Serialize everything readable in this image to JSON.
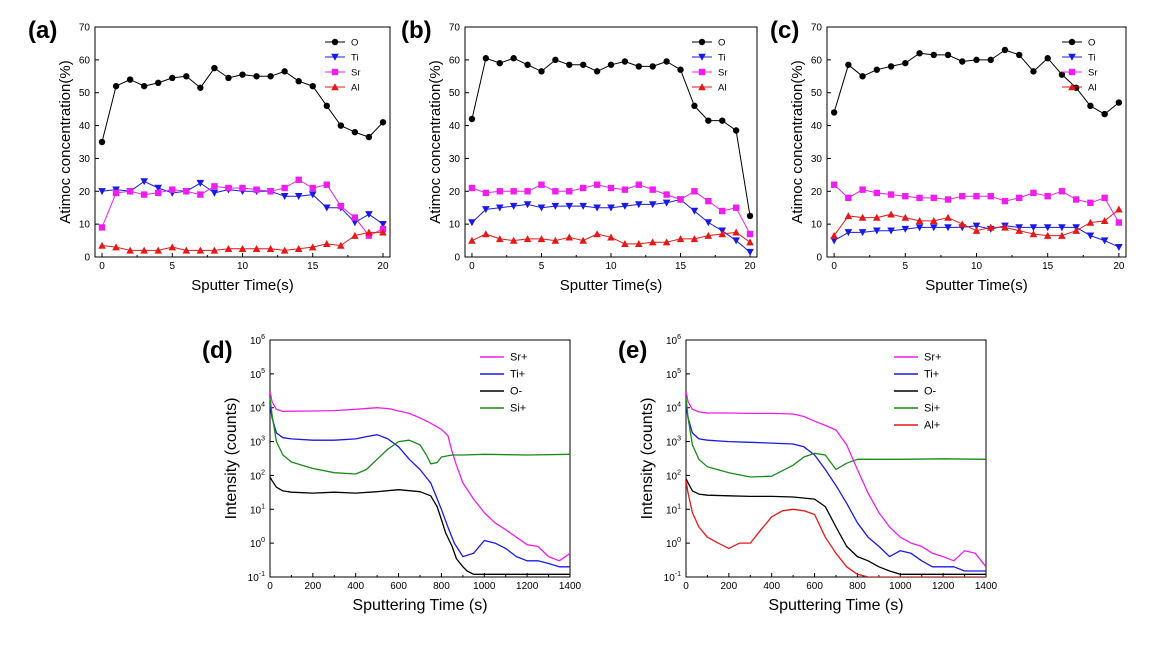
{
  "panel_labels": [
    "(a)",
    "(b)",
    "(c)",
    "(d)",
    "(e)"
  ],
  "colors": {
    "O": "#000000",
    "Ti": "#1a1ae6",
    "Sr": "#ee1fee",
    "Al": "#e61919",
    "Si": "#1a8a1a"
  },
  "chart_data": [
    {
      "type": "line",
      "panel": "(a)",
      "xlabel": "Sputter Time(s)",
      "ylabel": "Atimoc concentration(%)",
      "xlim": [
        -0.5,
        20.5
      ],
      "ylim": [
        0,
        70
      ],
      "xticks": [
        0,
        5,
        10,
        15,
        20
      ],
      "yticks": [
        0,
        10,
        20,
        30,
        40,
        50,
        60,
        70
      ],
      "legend_position": "top-right",
      "x": [
        0,
        1,
        2,
        3,
        4,
        5,
        6,
        7,
        8,
        9,
        10,
        11,
        12,
        13,
        14,
        15,
        16,
        17,
        18,
        19,
        20
      ],
      "series": [
        {
          "name": "O",
          "marker": "circle",
          "color": "#000000",
          "values": [
            35,
            52,
            54,
            52,
            53,
            54.5,
            55,
            51.5,
            57.5,
            54.5,
            55.5,
            55,
            55,
            56.5,
            53.5,
            52,
            46,
            40,
            38,
            36.5,
            41
          ]
        },
        {
          "name": "Ti",
          "marker": "triangle-down",
          "color": "#1a1ae6",
          "values": [
            20,
            20.5,
            20,
            23,
            21,
            19.5,
            20,
            22.5,
            19.5,
            20.5,
            20,
            20,
            20,
            18.5,
            18.5,
            19,
            15,
            15,
            10.5,
            13,
            10
          ]
        },
        {
          "name": "Sr",
          "marker": "square",
          "color": "#ee1fee",
          "values": [
            9,
            19.5,
            20,
            19,
            19.5,
            20.5,
            20,
            19,
            21.5,
            21,
            21,
            20.5,
            20,
            21,
            23.5,
            21,
            22,
            15.5,
            12,
            6.5,
            8.5
          ]
        },
        {
          "name": "Al",
          "marker": "triangle-up",
          "color": "#e61919",
          "values": [
            3.5,
            3,
            2,
            2,
            2,
            3,
            2,
            2,
            2,
            2.5,
            2.5,
            2.5,
            2.5,
            2,
            2.5,
            3,
            4,
            3.5,
            6.5,
            7.5,
            7.5
          ]
        }
      ]
    },
    {
      "type": "line",
      "panel": "(b)",
      "xlabel": "Sputter Time(s)",
      "ylabel": "Atimoc concentration(%)",
      "xlim": [
        -0.5,
        20.5
      ],
      "ylim": [
        0,
        70
      ],
      "xticks": [
        0,
        5,
        10,
        15,
        20
      ],
      "yticks": [
        0,
        10,
        20,
        30,
        40,
        50,
        60,
        70
      ],
      "legend_position": "top-right",
      "x": [
        0,
        1,
        2,
        3,
        4,
        5,
        6,
        7,
        8,
        9,
        10,
        11,
        12,
        13,
        14,
        15,
        16,
        17,
        18,
        19,
        20
      ],
      "series": [
        {
          "name": "O",
          "marker": "circle",
          "color": "#000000",
          "values": [
            42,
            60.5,
            59,
            60.5,
            58.5,
            56.5,
            60,
            58.5,
            58.5,
            56.5,
            58.5,
            59.5,
            58,
            58,
            59.5,
            57,
            46,
            41.5,
            41.5,
            38.5,
            12.5
          ]
        },
        {
          "name": "Ti",
          "marker": "triangle-down",
          "color": "#1a1ae6",
          "values": [
            10.5,
            14.5,
            15,
            15.5,
            16,
            15,
            15.5,
            15.5,
            15.5,
            15,
            15,
            15.5,
            16,
            16,
            16.5,
            17.5,
            14,
            10.5,
            8,
            5,
            1.5
          ]
        },
        {
          "name": "Sr",
          "marker": "square",
          "color": "#ee1fee",
          "values": [
            21,
            19.5,
            20,
            20,
            20,
            22,
            20,
            20,
            21,
            22,
            21,
            20.5,
            22,
            20.5,
            19,
            17.5,
            20,
            17,
            14,
            15,
            7
          ]
        },
        {
          "name": "Al",
          "marker": "triangle-up",
          "color": "#e61919",
          "values": [
            5,
            7,
            5.5,
            5,
            5.5,
            5.5,
            5,
            6,
            5,
            7,
            6,
            4,
            4,
            4.5,
            4.5,
            5.5,
            5.5,
            6.5,
            7,
            7.5,
            4.5
          ]
        }
      ]
    },
    {
      "type": "line",
      "panel": "(c)",
      "xlabel": "Sputter Time(s)",
      "ylabel": "Atimoc concentration(%)",
      "xlim": [
        -0.5,
        20.5
      ],
      "ylim": [
        0,
        70
      ],
      "xticks": [
        0,
        5,
        10,
        15,
        20
      ],
      "yticks": [
        0,
        10,
        20,
        30,
        40,
        50,
        60,
        70
      ],
      "legend_position": "top-right",
      "x": [
        0,
        1,
        2,
        3,
        4,
        5,
        6,
        7,
        8,
        9,
        10,
        11,
        12,
        13,
        14,
        15,
        16,
        17,
        18,
        19,
        20
      ],
      "series": [
        {
          "name": "O",
          "marker": "circle",
          "color": "#000000",
          "values": [
            44,
            58.5,
            55,
            57,
            58,
            59,
            62,
            61.5,
            61.5,
            59.5,
            60,
            60,
            63,
            61.5,
            56.5,
            60.5,
            55.5,
            51.5,
            46,
            43.5,
            47
          ]
        },
        {
          "name": "Ti",
          "marker": "triangle-down",
          "color": "#1a1ae6",
          "values": [
            5,
            7.5,
            7.5,
            8,
            8,
            8.5,
            9,
            9,
            9,
            9,
            9.5,
            8.5,
            9.5,
            9,
            9,
            9,
            9,
            9,
            6.5,
            5,
            3
          ]
        },
        {
          "name": "Sr",
          "marker": "square",
          "color": "#ee1fee",
          "values": [
            22,
            18,
            20.5,
            19.5,
            19,
            18.5,
            18,
            18,
            17.5,
            18.5,
            18.5,
            18.5,
            17,
            18,
            19.5,
            18.5,
            20,
            17.5,
            16.5,
            18,
            10.5
          ]
        },
        {
          "name": "Al",
          "marker": "triangle-up",
          "color": "#e61919",
          "values": [
            6.5,
            12.5,
            12,
            12,
            13,
            12,
            11,
            11,
            12,
            10,
            8,
            9,
            9,
            8,
            7,
            6.5,
            6.5,
            8,
            10.5,
            11,
            14.5
          ]
        }
      ]
    },
    {
      "type": "line",
      "panel": "(d)",
      "xlabel": "Sputtering Time (s)",
      "ylabel": "Intensity (counts)",
      "yscale": "log",
      "xlim": [
        0,
        1400
      ],
      "ylim": [
        0.1,
        1000000
      ],
      "xticks": [
        0,
        200,
        400,
        600,
        800,
        1000,
        1200,
        1400
      ],
      "yticks": [
        "10^-1",
        "10^0",
        "10^1",
        "10^2",
        "10^3",
        "10^4",
        "10^5",
        "10^6"
      ],
      "legend_position": "top-right",
      "series": [
        {
          "name": "Sr+",
          "color": "#ee1fee",
          "x": [
            0,
            10,
            30,
            60,
            100,
            200,
            300,
            400,
            500,
            560,
            600,
            650,
            700,
            750,
            800,
            830,
            850,
            870,
            900,
            950,
            1000,
            1050,
            1100,
            1150,
            1200,
            1250,
            1300,
            1350,
            1400
          ],
          "values": [
            30000,
            15000,
            9000,
            7800,
            7900,
            8000,
            8200,
            9000,
            10000,
            9300,
            8000,
            6800,
            5000,
            3500,
            2300,
            1500,
            500,
            200,
            60,
            20,
            8,
            4,
            2.5,
            1.5,
            0.9,
            0.8,
            0.4,
            0.3,
            0.5
          ]
        },
        {
          "name": "Ti+",
          "color": "#1a1ae6",
          "x": [
            0,
            10,
            30,
            60,
            100,
            200,
            300,
            400,
            450,
            500,
            550,
            600,
            650,
            700,
            750,
            800,
            830,
            860,
            900,
            950,
            1000,
            1050,
            1100,
            1150,
            1200,
            1250,
            1300,
            1350,
            1400
          ],
          "values": [
            12000,
            5000,
            1800,
            1300,
            1200,
            1100,
            1100,
            1200,
            1400,
            1600,
            1200,
            700,
            300,
            150,
            60,
            10,
            3,
            1,
            0.4,
            0.5,
            1.2,
            1,
            0.7,
            0.4,
            0.3,
            0.3,
            0.25,
            0.2,
            0.2
          ]
        },
        {
          "name": "O-",
          "color": "#000000",
          "x": [
            0,
            10,
            30,
            60,
            100,
            200,
            300,
            400,
            500,
            600,
            700,
            750,
            780,
            800,
            820,
            850,
            870,
            900,
            920,
            950,
            1000,
            1100,
            1200,
            1300,
            1400
          ],
          "values": [
            90,
            70,
            45,
            35,
            32,
            30,
            32,
            30,
            33,
            38,
            33,
            25,
            12,
            5,
            2,
            0.8,
            0.35,
            0.2,
            0.15,
            0.12,
            0.12,
            0.12,
            0.12,
            0.12,
            0.12
          ]
        },
        {
          "name": "Si+",
          "color": "#1a8a1a",
          "x": [
            0,
            10,
            30,
            60,
            100,
            200,
            300,
            400,
            450,
            500,
            550,
            600,
            650,
            700,
            730,
            750,
            780,
            800,
            850,
            900,
            1000,
            1200,
            1400
          ],
          "values": [
            20000,
            6000,
            1000,
            400,
            250,
            160,
            120,
            110,
            150,
            300,
            600,
            1000,
            1100,
            800,
            400,
            220,
            240,
            350,
            400,
            400,
            420,
            400,
            420
          ]
        }
      ]
    },
    {
      "type": "line",
      "panel": "(e)",
      "xlabel": "Sputtering Time (s)",
      "ylabel": "Intensity (counts)",
      "yscale": "log",
      "xlim": [
        0,
        1400
      ],
      "ylim": [
        0.1,
        1000000
      ],
      "xticks": [
        0,
        200,
        400,
        600,
        800,
        1000,
        1200,
        1400
      ],
      "yticks": [
        "10^-1",
        "10^0",
        "10^1",
        "10^2",
        "10^3",
        "10^4",
        "10^5",
        "10^6"
      ],
      "legend_position": "top-right",
      "series": [
        {
          "name": "Sr+",
          "color": "#ee1fee",
          "x": [
            0,
            10,
            30,
            60,
            100,
            200,
            300,
            400,
            500,
            550,
            600,
            650,
            700,
            750,
            800,
            850,
            900,
            950,
            1000,
            1050,
            1100,
            1150,
            1200,
            1250,
            1300,
            1350,
            1400
          ],
          "values": [
            30000,
            15000,
            9000,
            7500,
            7000,
            7000,
            6800,
            6800,
            6500,
            5500,
            4000,
            3000,
            2200,
            800,
            150,
            30,
            8,
            3,
            1.5,
            1,
            0.8,
            0.5,
            0.4,
            0.3,
            0.6,
            0.5,
            0.2
          ]
        },
        {
          "name": "Ti+",
          "color": "#1a1ae6",
          "x": [
            0,
            10,
            30,
            60,
            100,
            200,
            300,
            400,
            500,
            550,
            600,
            650,
            700,
            750,
            800,
            850,
            900,
            950,
            1000,
            1050,
            1100,
            1150,
            1200,
            1250,
            1300,
            1400
          ],
          "values": [
            12000,
            5000,
            1800,
            1200,
            1100,
            1000,
            950,
            900,
            850,
            700,
            400,
            150,
            50,
            15,
            4,
            1.5,
            0.8,
            0.4,
            0.6,
            0.5,
            0.3,
            0.2,
            0.2,
            0.2,
            0.15,
            0.15
          ]
        },
        {
          "name": "O-",
          "color": "#000000",
          "x": [
            0,
            10,
            30,
            60,
            100,
            200,
            300,
            400,
            500,
            600,
            650,
            700,
            750,
            800,
            850,
            900,
            950,
            1000,
            1100,
            1200,
            1300,
            1400
          ],
          "values": [
            80,
            60,
            35,
            28,
            26,
            25,
            24,
            24,
            23,
            20,
            12,
            3,
            0.8,
            0.4,
            0.3,
            0.2,
            0.15,
            0.12,
            0.12,
            0.12,
            0.12,
            0.12
          ]
        },
        {
          "name": "Si+",
          "color": "#1a8a1a",
          "x": [
            0,
            10,
            30,
            60,
            100,
            200,
            300,
            400,
            500,
            550,
            600,
            650,
            700,
            750,
            800,
            900,
            1000,
            1200,
            1400
          ],
          "values": [
            20000,
            5000,
            800,
            300,
            180,
            120,
            90,
            95,
            200,
            350,
            450,
            400,
            150,
            230,
            300,
            300,
            300,
            310,
            300
          ]
        },
        {
          "name": "Al+",
          "color": "#e61919",
          "x": [
            0,
            10,
            30,
            60,
            100,
            150,
            200,
            250,
            300,
            350,
            400,
            450,
            500,
            550,
            600,
            650,
            700,
            750,
            800,
            850,
            900,
            1000,
            1100,
            1200,
            1300,
            1400
          ],
          "values": [
            70,
            30,
            8,
            3,
            1.5,
            1,
            0.7,
            1,
            1,
            2.5,
            6,
            9,
            10,
            9,
            7,
            1.5,
            0.5,
            0.2,
            0.12,
            0.1,
            0.1,
            0.1,
            0.1,
            0.1,
            0.1,
            0.1
          ]
        }
      ]
    }
  ]
}
